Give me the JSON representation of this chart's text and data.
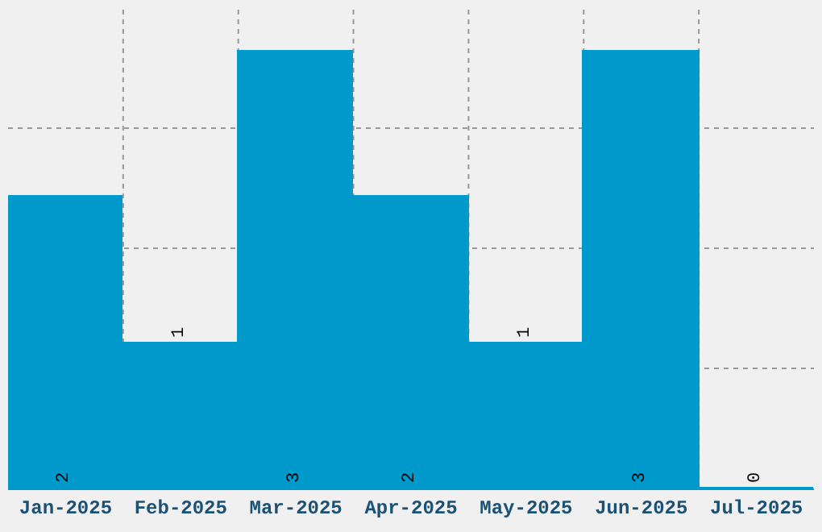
{
  "chart_data": {
    "type": "bar",
    "categories": [
      "Jan-2025",
      "Feb-2025",
      "Mar-2025",
      "Apr-2025",
      "May-2025",
      "Jun-2025",
      "Jul-2025"
    ],
    "values": [
      2,
      1,
      3,
      2,
      1,
      3,
      0
    ],
    "color": "#0099cc",
    "data_labels": true,
    "ylim": [
      0,
      3.3
    ],
    "yticks": [
      {
        "value": 0,
        "label": null
      },
      {
        "value": 0.825,
        "label": null
      },
      {
        "value": 1.65,
        "label": null
      },
      {
        "value": 2.475,
        "label": null
      }
    ],
    "tick_labels": "x",
    "grid": true
  }
}
